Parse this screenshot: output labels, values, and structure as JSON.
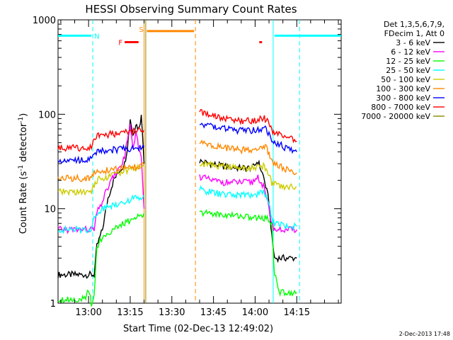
{
  "chart_data": {
    "type": "line",
    "title": "HESSI Observing Summary Count Rates",
    "xlabel": "Start Time (02-Dec-13 12:49:02)",
    "ylabel": "Count Rate (s",
    "ylabel_sup": "-1",
    "ylabel_rest": " detector",
    "ylabel_close": ")",
    "x_unit": "minutes since 12:49:02",
    "xlim": [
      0,
      102
    ],
    "ylim": [
      1,
      1000
    ],
    "yscale": "log",
    "x_ticks": [
      {
        "x": 11,
        "label": "13:00"
      },
      {
        "x": 26,
        "label": "13:15"
      },
      {
        "x": 41,
        "label": "13:30"
      },
      {
        "x": 56,
        "label": "13:45"
      },
      {
        "x": 71,
        "label": "14:00"
      },
      {
        "x": 86,
        "label": "14:15"
      }
    ],
    "y_ticks": [
      {
        "y": 1,
        "label": "1"
      },
      {
        "y": 10,
        "label": "10"
      },
      {
        "y": 100,
        "label": "100"
      },
      {
        "y": 1000,
        "label": "1000"
      }
    ],
    "legend_header": [
      "Det 1,3,5,6,7,9,",
      "FDecim 1, Att 0"
    ],
    "legend_placement": "right",
    "grid": false,
    "series": [
      {
        "name": "3 - 6 keV",
        "color": "#000000",
        "segments": [
          {
            "x": [
              0,
              13,
              14,
              16,
              18,
              20,
              22,
              24,
              25,
              26,
              27,
              28,
              29,
              30,
              30.5,
              31
            ],
            "y": [
              2,
              2,
              4,
              6,
              13,
              20,
              25,
              30,
              45,
              90,
              60,
              80,
              70,
              95,
              60,
              30
            ]
          },
          {
            "x": [
              51,
              55,
              60,
              65,
              70,
              72,
              74,
              76,
              77,
              78,
              80,
              82,
              86
            ],
            "y": [
              32,
              30,
              28,
              27,
              27,
              32,
              22,
              12,
              5,
              3,
              3,
              3,
              3
            ]
          }
        ]
      },
      {
        "name": "6 - 12 keV",
        "color": "#ff00ff",
        "segments": [
          {
            "x": [
              0,
              13,
              14,
              16,
              18,
              20,
              22,
              24,
              25,
              26,
              27,
              28,
              29,
              30,
              30.5,
              31
            ],
            "y": [
              6,
              6,
              9,
              12,
              17,
              22,
              26,
              35,
              55,
              75,
              40,
              65,
              45,
              35,
              20,
              10
            ]
          },
          {
            "x": [
              51,
              55,
              60,
              65,
              70,
              72,
              74,
              76,
              77,
              78,
              80,
              82,
              86
            ],
            "y": [
              22,
              20,
              19,
              19,
              19,
              22,
              17,
              10,
              7,
              6,
              6,
              6,
              6
            ]
          }
        ]
      },
      {
        "name": "12 - 25 keV",
        "color": "#00ff00",
        "segments": [
          {
            "x": [
              0,
              10,
              11,
              12,
              13,
              14,
              16,
              18,
              20,
              22,
              24,
              26,
              28,
              30,
              31
            ],
            "y": [
              1.1,
              1.1,
              1.4,
              1,
              1.2,
              4,
              5,
              5.5,
              6,
              6.5,
              7,
              7.5,
              8,
              8.5,
              9
            ]
          },
          {
            "x": [
              51,
              55,
              60,
              65,
              70,
              75,
              77,
              78,
              80,
              82,
              86
            ],
            "y": [
              9,
              9,
              8.5,
              8.5,
              8,
              8,
              7,
              2,
              1.3,
              1.3,
              1.3
            ]
          }
        ]
      },
      {
        "name": "25 - 50 keV",
        "color": "#00ffff",
        "segments": [
          {
            "x": [
              0,
              12,
              13,
              14,
              16,
              18,
              20,
              22,
              24,
              26,
              28,
              30,
              31
            ],
            "y": [
              6,
              6,
              8,
              9,
              10,
              10.5,
              11,
              11.5,
              12,
              12.5,
              13,
              13.5,
              14
            ]
          },
          {
            "x": [
              51,
              55,
              60,
              65,
              70,
              74,
              75,
              76,
              77,
              78,
              80,
              82,
              86
            ],
            "y": [
              16,
              15,
              14,
              14,
              14,
              15,
              14,
              11,
              8,
              7,
              7,
              6.5,
              6.5
            ]
          }
        ]
      },
      {
        "name": "50 - 100 keV",
        "color": "#cccc00",
        "segments": [
          {
            "x": [
              0,
              12,
              13,
              14,
              16,
              18,
              20,
              22,
              24,
              26,
              28,
              30,
              31
            ],
            "y": [
              15,
              15,
              18,
              20,
              21,
              22,
              23,
              24,
              25,
              26,
              27,
              28,
              29
            ]
          },
          {
            "x": [
              51,
              55,
              60,
              65,
              70,
              74,
              75,
              76,
              77,
              78,
              80,
              82,
              86
            ],
            "y": [
              30,
              29,
              28,
              27,
              27,
              28,
              27,
              22,
              19,
              18,
              17.5,
              17,
              17
            ]
          }
        ]
      },
      {
        "name": "100 - 300 keV",
        "color": "#ff8800",
        "segments": [
          {
            "x": [
              0,
              12,
              13,
              16,
              20,
              24,
              28,
              31
            ],
            "y": [
              21,
              21,
              24,
              25,
              26,
              27,
              28,
              29
            ]
          },
          {
            "x": [
              51,
              55,
              60,
              65,
              70,
              74,
              75,
              76,
              77,
              78,
              80,
              82,
              86
            ],
            "y": [
              50,
              47,
              44,
              42,
              42,
              45,
              44,
              38,
              32,
              30,
              28,
              26,
              24
            ]
          }
        ]
      },
      {
        "name": "300 - 800 keV",
        "color": "#0000ff",
        "segments": [
          {
            "x": [
              0,
              12,
              13,
              16,
              20,
              24,
              28,
              31
            ],
            "y": [
              33,
              33,
              40,
              41,
              42,
              43,
              44,
              45
            ]
          },
          {
            "x": [
              51,
              55,
              60,
              65,
              70,
              74,
              75,
              76,
              77,
              78,
              80,
              82,
              86
            ],
            "y": [
              80,
              75,
              70,
              67,
              67,
              72,
              68,
              60,
              52,
              50,
              48,
              44,
              40
            ]
          }
        ]
      },
      {
        "name": "800 - 7000 keV",
        "color": "#ff0000",
        "segments": [
          {
            "x": [
              0,
              12,
              13,
              16,
              20,
              24,
              28,
              31
            ],
            "y": [
              44,
              44,
              58,
              60,
              62,
              64,
              66,
              68
            ]
          },
          {
            "x": [
              51,
              55,
              60,
              65,
              70,
              74,
              75,
              76,
              77,
              78,
              80,
              82,
              86
            ],
            "y": [
              105,
              97,
              90,
              85,
              85,
              92,
              88,
              78,
              68,
              65,
              62,
              58,
              52
            ]
          }
        ]
      },
      {
        "name": "7000 - 20000 keV",
        "color": "#888800",
        "segments": []
      }
    ],
    "annotations": {
      "vertical_lines": [
        {
          "x": 12.5,
          "color": "#00ffff",
          "style": "dashed"
        },
        {
          "x": 31,
          "color": "#ff8800",
          "style": "solid"
        },
        {
          "x": 31.6,
          "color": "#888800",
          "style": "solid"
        },
        {
          "x": 49.5,
          "color": "#ff8800",
          "style": "dashed"
        },
        {
          "x": 77.5,
          "color": "#00ffff",
          "style": "solid"
        },
        {
          "x": 87,
          "color": "#00ffff",
          "style": "dashed"
        }
      ],
      "flag_bars": [
        {
          "x0": 0,
          "x1": 12,
          "y": 680,
          "color": "#00ffff"
        },
        {
          "x0": 78,
          "x1": 102,
          "y": 680,
          "color": "#00ffff"
        },
        {
          "x0": 32,
          "x1": 49,
          "y": 760,
          "color": "#ff8800"
        },
        {
          "x0": 24,
          "x1": 29,
          "y": 580,
          "color": "#ff0000"
        },
        {
          "x0": 72.5,
          "x1": 73.5,
          "y": 580,
          "color": "#ff0000"
        }
      ],
      "flag_labels": [
        {
          "x": 14,
          "y": 680,
          "text": "N",
          "color": "#00ffff"
        },
        {
          "x": 22.5,
          "y": 580,
          "text": "F",
          "color": "#ff0000"
        },
        {
          "x": 30,
          "y": 800,
          "text": "S",
          "color": "#ff8800"
        }
      ]
    }
  },
  "footer": {
    "date": "2-Dec-2013 17:48"
  }
}
